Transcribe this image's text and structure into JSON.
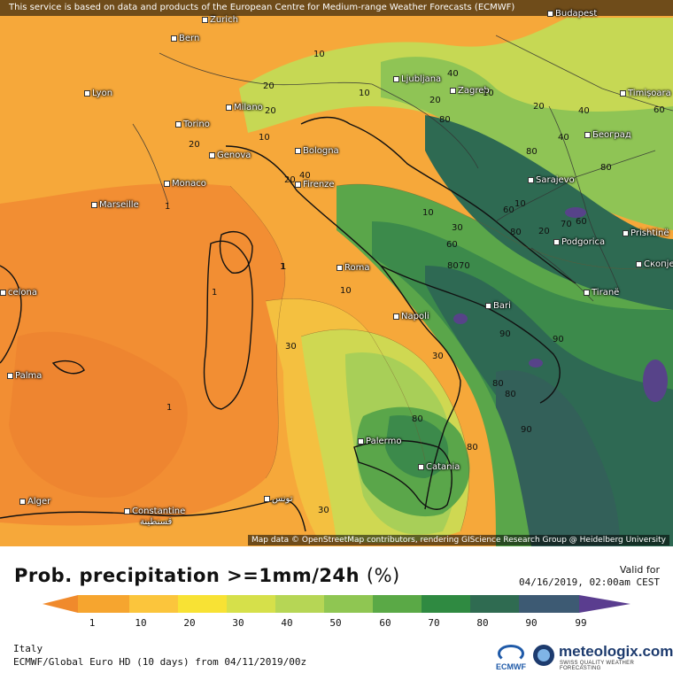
{
  "banner": "This service is based on data and products of the European Centre for Medium-range Weather Forecasts (ECMWF)",
  "attribution": "Map data © OpenStreetMap contributors, rendering GIScience Research Group @ Heidelberg University",
  "cities": [
    {
      "id": "budapest",
      "name": "Budapest"
    },
    {
      "id": "zurich",
      "name": "Zurich"
    },
    {
      "id": "bern",
      "name": "Bern"
    },
    {
      "id": "lyon",
      "name": "Lyon"
    },
    {
      "id": "milano",
      "name": "Milano"
    },
    {
      "id": "torino",
      "name": "Torino"
    },
    {
      "id": "ljubljana",
      "name": "Ljubljana"
    },
    {
      "id": "zagreb",
      "name": "Zagreb"
    },
    {
      "id": "timisoara",
      "name": "Timișoara"
    },
    {
      "id": "beograd",
      "name": "Београд"
    },
    {
      "id": "genova",
      "name": "Genova"
    },
    {
      "id": "bologna",
      "name": "Bologna"
    },
    {
      "id": "monaco",
      "name": "Monaco"
    },
    {
      "id": "marseille",
      "name": "Marseille"
    },
    {
      "id": "firenze",
      "name": "Firenze"
    },
    {
      "id": "sarajevo",
      "name": "Sarajevo"
    },
    {
      "id": "podgorica",
      "name": "Podgorica"
    },
    {
      "id": "prishtine",
      "name": "Prishtinë"
    },
    {
      "id": "skopje",
      "name": "Скопје"
    },
    {
      "id": "roma",
      "name": "Roma"
    },
    {
      "id": "barcelona",
      "name": "celona"
    },
    {
      "id": "tirane",
      "name": "Tiranë"
    },
    {
      "id": "bari",
      "name": "Bari"
    },
    {
      "id": "napoli",
      "name": "Napoli"
    },
    {
      "id": "palma",
      "name": "Palma"
    },
    {
      "id": "palermo",
      "name": "Palermo"
    },
    {
      "id": "catania",
      "name": "Catania"
    },
    {
      "id": "alger",
      "name": "Alger"
    },
    {
      "id": "constantine",
      "name": "Constantine"
    },
    {
      "id": "constantine_ar",
      "name": "قسنطينة"
    },
    {
      "id": "tunis",
      "name": "تونس"
    }
  ],
  "contour_labels": [
    "10",
    "20",
    "10",
    "20",
    "10",
    "20",
    "20",
    "40",
    "20",
    "20",
    "40",
    "10",
    "40",
    "40",
    "60",
    "60",
    "60",
    "80",
    "70",
    "80",
    "80",
    "80",
    "10",
    "10",
    "30",
    "60",
    "80",
    "70",
    "20",
    "10",
    "1",
    "1",
    "1",
    "1",
    "30",
    "30",
    "90",
    "80",
    "90",
    "90",
    "80",
    "80",
    "80",
    "30",
    "1"
  ],
  "legend": {
    "title": "Prob. precipitation >=1mm/24h",
    "unit": "(%)",
    "ticks": [
      "1",
      "10",
      "20",
      "30",
      "40",
      "50",
      "60",
      "70",
      "80",
      "90",
      "99"
    ],
    "colors": [
      "#f08a2c",
      "#f6a52f",
      "#fbc53c",
      "#f8e234",
      "#d6e04a",
      "#b6d655",
      "#8fc652",
      "#5aa946",
      "#2f8a41",
      "#2f6b51",
      "#3d5a73",
      "#5a3d8f"
    ]
  },
  "valid": {
    "label": "Valid for",
    "datetime": "04/16/2019, 02:00am CEST"
  },
  "footer": {
    "region": "Italy",
    "model": "ECMWF/Global Euro HD (10 days) from 04/11/2019/00z",
    "ecmwf_logo": "ECMWF",
    "brand": "meteologix.com",
    "brand_sub": "SWISS QUALITY WEATHER FORECASTING"
  },
  "colors": {
    "p1": "#f08a2c",
    "p10": "#f5a435",
    "p20": "#f7bd3a",
    "p30": "#f9d83c",
    "p40": "#d7df52",
    "p50": "#b5d65a",
    "p60": "#8cc455",
    "p70": "#5ba74a",
    "p80": "#3a8a4a",
    "p90": "#2d6953",
    "p99": "#574389"
  }
}
